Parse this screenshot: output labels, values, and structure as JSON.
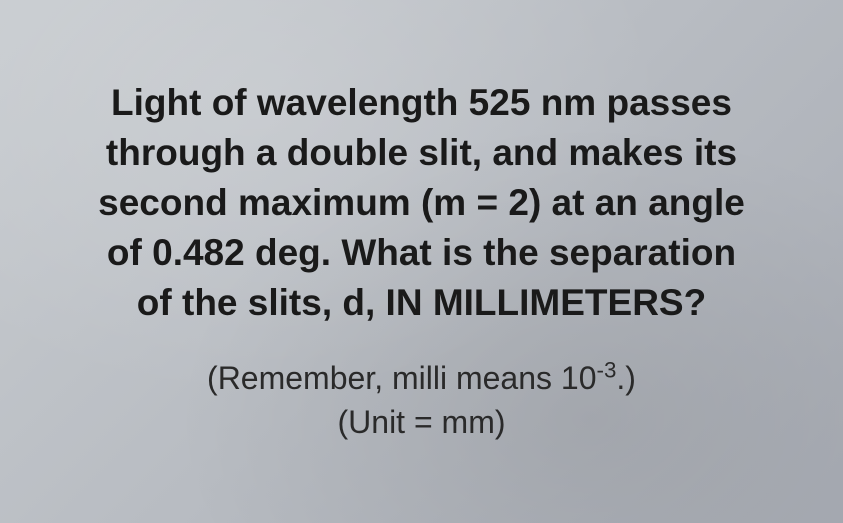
{
  "question": {
    "line1": "Light of wavelength 525 nm passes",
    "line2": "through a double slit, and makes its",
    "line3": "second maximum (m = 2) at an angle",
    "line4": "of 0.482 deg. What is the separation",
    "line5_prefix": "of the slits, d, ",
    "line5_emphasis": "IN MILLIMETERS?"
  },
  "hint": {
    "line1_prefix": "(Remember, milli means 10",
    "line1_sup": "-3",
    "line1_suffix": ".)",
    "line2": "(Unit = mm)"
  },
  "styling": {
    "background_gradient_start": "#c8ccd0",
    "background_gradient_mid": "#b8bcc2",
    "background_gradient_end": "#a8acb4",
    "question_fontsize": 37,
    "question_fontweight": "bold",
    "question_color": "#1a1a1a",
    "hint_fontsize": 32,
    "hint_fontweight": "normal",
    "hint_color": "#2a2a2a",
    "font_family": "Arial, Helvetica, sans-serif",
    "text_align": "center",
    "line_height": 1.35
  },
  "physics_values": {
    "wavelength_nm": 525,
    "order_m": 2,
    "angle_deg": 0.482,
    "unit": "mm"
  }
}
